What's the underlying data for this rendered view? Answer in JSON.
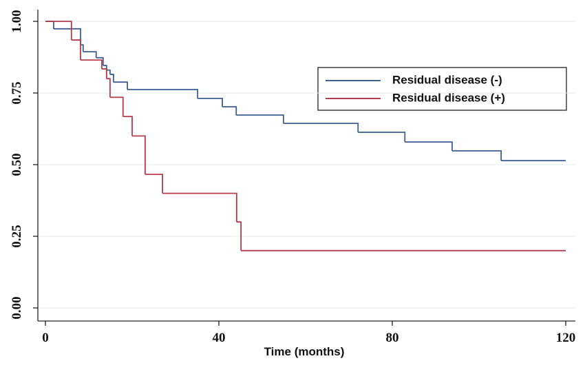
{
  "chart_data": {
    "type": "step",
    "xlabel": "Time (months)",
    "xlim": [
      0,
      120
    ],
    "xticks": [
      0,
      40,
      80,
      120
    ],
    "ylim": [
      0,
      1
    ],
    "yticks": [
      {
        "value": 0,
        "label": "0.00"
      },
      {
        "value": 0.25,
        "label": "0.25"
      },
      {
        "value": 0.5,
        "label": "0.50"
      },
      {
        "value": 0.75,
        "label": "0.75"
      },
      {
        "value": 1,
        "label": "1.00"
      }
    ],
    "grid": true,
    "legend": "top-right",
    "series": [
      {
        "name": "Residual disease (-)",
        "color": "#3b5f93",
        "x": [
          0,
          1.9,
          8.1,
          8.7,
          11.7,
          13.3,
          14.1,
          14.9,
          15.7,
          18.9,
          35.1,
          40.8,
          44,
          54.9,
          72.1,
          82.9,
          93.8,
          105.1,
          120
        ],
        "values": [
          1,
          0.974,
          0.918,
          0.894,
          0.873,
          0.846,
          0.83,
          0.815,
          0.788,
          0.762,
          0.731,
          0.702,
          0.673,
          0.644,
          0.613,
          0.579,
          0.548,
          0.514,
          0.514
        ]
      },
      {
        "name": "Residual disease (+)",
        "color": "#b83a4b",
        "x": [
          0,
          6,
          8.1,
          13,
          14.1,
          14.9,
          17.9,
          20,
          23,
          27,
          44.1,
          45.1,
          120
        ],
        "values": [
          1,
          0.935,
          0.865,
          0.834,
          0.8,
          0.735,
          0.668,
          0.6,
          0.466,
          0.4,
          0.3,
          0.2,
          0.2
        ]
      }
    ]
  }
}
